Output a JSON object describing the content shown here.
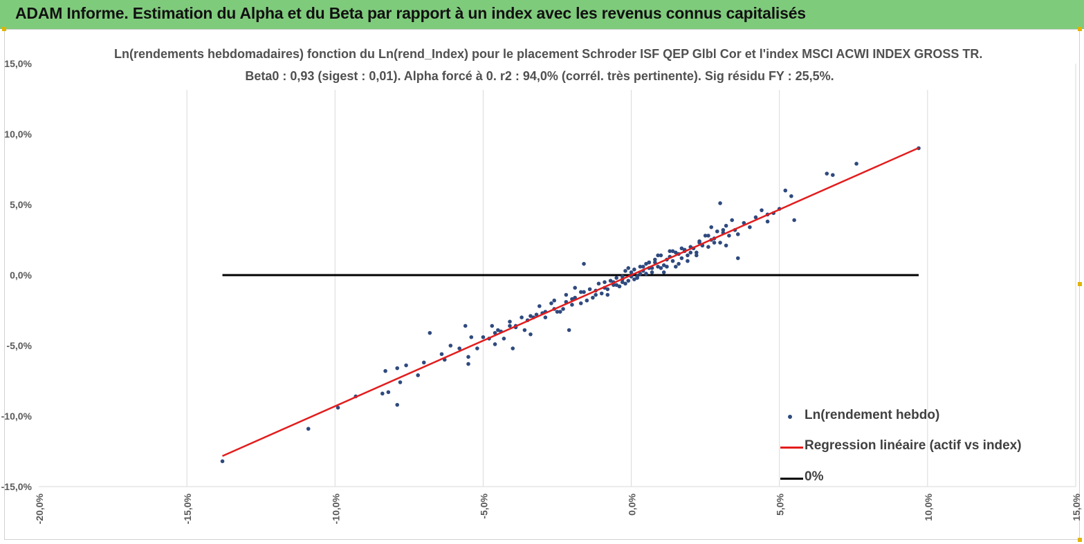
{
  "banner": {
    "title": "ADAM Informe. Estimation du Alpha et du Beta par rapport à un index avec les revenus connus capitalisés"
  },
  "colors": {
    "banner_bg": "#7fcb7c",
    "points": "#2f4a7e",
    "regression": "#e31c1c",
    "zero_line": "#000000",
    "grid": "#d9d9d9"
  },
  "chart_data": {
    "type": "scatter",
    "title_line1": "Ln(rendements hebdomadaires) fonction du Ln(rend_Index) pour le placement Schroder ISF QEP Glbl Cor et l'index MSCI ACWI INDEX GROSS TR.",
    "title_line2": "Beta0 : 0,93 (sigest : 0,01). Alpha forcé à 0. r2 : 94,0% (corrél. très pertinente). Sig résidu FY : 25,5%.",
    "xlim": [
      -20,
      15
    ],
    "ylim": [
      -15,
      15
    ],
    "x_ticks": [
      -20,
      -15,
      -10,
      -5,
      0,
      5,
      10,
      15
    ],
    "y_ticks": [
      -15,
      -10,
      -5,
      0,
      5,
      10,
      15
    ],
    "x_tick_labels": [
      "-20,0%",
      "-15,0%",
      "-10,0%",
      "-5,0%",
      "0,0%",
      "5,0%",
      "10,0%",
      "15,0%"
    ],
    "y_tick_labels": [
      "-15,0%",
      "-10,0%",
      "-5,0%",
      "0,0%",
      "5,0%",
      "10,0%",
      "15,0%"
    ],
    "grid": "vertical",
    "legend": [
      "Ln(rendement hebdo)",
      "Regression linéaire (actif vs index)",
      "0%"
    ],
    "regression": {
      "name": "Regression linéaire (actif vs index)",
      "slope": 0.93,
      "intercept": 0,
      "x": [
        -13.8,
        9.7
      ],
      "y": [
        -12.83,
        9.02
      ]
    },
    "zero_line": {
      "name": "0%",
      "x": [
        -13.8,
        9.7
      ],
      "y": [
        0,
        0
      ]
    },
    "points": {
      "name": "Ln(rendement hebdo)",
      "x": [
        -13.8,
        -10.9,
        -9.9,
        -9.3,
        -8.4,
        -8.3,
        -8.2,
        -7.9,
        -7.9,
        -7.8,
        -7.6,
        -7.2,
        -7.0,
        -6.8,
        -6.4,
        -6.3,
        -6.1,
        -5.6,
        -5.5,
        -5.5,
        -5.4,
        -5.2,
        -5.0,
        -4.7,
        -4.6,
        -4.5,
        -4.4,
        -4.3,
        -4.1,
        -4.0,
        -3.9,
        -3.7,
        -3.6,
        -3.5,
        -3.4,
        -3.3,
        -3.2,
        -3.0,
        -2.9,
        -2.7,
        -2.6,
        -2.4,
        -2.2,
        -2.1,
        -2.0,
        -1.9,
        -1.7,
        -1.6,
        -1.4,
        -1.2,
        -1.1,
        -0.9,
        -0.8,
        -0.7,
        -0.6,
        -0.5,
        -0.4,
        -0.3,
        -0.2,
        -0.1,
        0.0,
        0.1,
        0.2,
        0.3,
        0.4,
        0.5,
        0.6,
        0.7,
        0.8,
        0.9,
        1.0,
        1.1,
        1.2,
        1.3,
        1.4,
        1.5,
        1.6,
        1.7,
        1.8,
        1.9,
        2.0,
        2.1,
        2.2,
        2.3,
        2.4,
        2.5,
        2.6,
        2.7,
        2.8,
        2.9,
        3.0,
        3.1,
        3.2,
        3.3,
        3.4,
        3.5,
        3.6,
        3.8,
        4.0,
        4.2,
        4.4,
        4.6,
        4.8,
        5.0,
        5.2,
        5.4,
        5.5,
        6.6,
        6.8,
        7.6,
        9.7,
        -2.2,
        -1.7,
        -1.9,
        -0.3,
        0.1,
        -0.1,
        0.5,
        0.9,
        0.6,
        1.6,
        1.9,
        1.3,
        -0.6,
        -1.3,
        -2.6,
        -3.9,
        -4.6,
        -5.8,
        3.0,
        3.2,
        2.2,
        2.6,
        2.0,
        1.7,
        0.2,
        -0.4,
        -1.0,
        -1.6,
        -2.3,
        -3.1,
        0.8,
        1.2,
        0.4,
        -0.2,
        1.5,
        1.0,
        -0.8,
        -1.5,
        -2.9,
        2.4,
        2.8,
        3.6,
        4.6,
        0.0,
        0.3,
        0.6,
        1.1,
        1.4,
        -0.5,
        -0.9,
        -1.2,
        -2.0,
        -2.5,
        -3.4,
        -4.1,
        -4.8,
        2.7,
        3.1,
        2.3,
        1.8,
        0.7,
        -0.3
      ],
      "y": [
        -13.2,
        -10.9,
        -9.4,
        -8.6,
        -8.4,
        -6.8,
        -8.3,
        -9.2,
        -6.6,
        -7.6,
        -6.4,
        -7.1,
        -6.2,
        -4.1,
        -5.6,
        -6.0,
        -5.0,
        -3.6,
        -5.8,
        -6.3,
        -4.4,
        -5.2,
        -4.4,
        -3.6,
        -4.9,
        -3.9,
        -4.0,
        -4.5,
        -3.3,
        -5.2,
        -3.6,
        -3.0,
        -3.9,
        -3.2,
        -4.2,
        -3.0,
        -2.8,
        -2.7,
        -3.0,
        -2.0,
        -1.8,
        -2.6,
        -1.9,
        -3.9,
        -2.1,
        -1.6,
        -1.2,
        0.8,
        -1.0,
        -1.4,
        -0.6,
        -0.9,
        -1.0,
        -0.4,
        -0.7,
        -0.2,
        -0.8,
        -0.1,
        0.3,
        -0.4,
        0.2,
        0.4,
        -0.1,
        0.6,
        0.3,
        0.8,
        0.5,
        0.2,
        0.9,
        1.4,
        0.5,
        0.2,
        1.1,
        1.7,
        1.0,
        1.6,
        1.5,
        1.2,
        1.8,
        1.4,
        2.0,
        1.9,
        1.6,
        2.4,
        2.1,
        2.8,
        2.0,
        3.4,
        2.6,
        3.1,
        2.3,
        3.0,
        3.5,
        2.8,
        3.9,
        3.2,
        1.2,
        3.7,
        3.4,
        4.1,
        4.6,
        3.8,
        4.4,
        4.7,
        6.0,
        5.6,
        3.9,
        7.2,
        7.1,
        7.9,
        9.0,
        -1.4,
        -2.0,
        -0.9,
        -0.5,
        -0.3,
        0.5,
        0.1,
        0.6,
        0.9,
        0.8,
        1.0,
        1.3,
        -0.5,
        -1.6,
        -2.4,
        -3.7,
        -4.1,
        -5.2,
        5.1,
        2.1,
        1.4,
        2.8,
        1.6,
        1.9,
        -0.2,
        -0.8,
        -1.3,
        -1.2,
        -2.4,
        -2.2,
        1.1,
        0.6,
        0.6,
        -0.6,
        0.6,
        1.4,
        -1.4,
        -1.8,
        -2.6,
        2.1,
        2.3,
        2.9,
        4.3,
        -0.1,
        0.1,
        0.9,
        0.7,
        1.7,
        -0.7,
        -0.5,
        -1.1,
        -1.7,
        -2.6,
        -2.9,
        -3.6,
        -4.5,
        2.5,
        3.2,
        2.3,
        1.7,
        0.5,
        -0.3
      ]
    }
  }
}
